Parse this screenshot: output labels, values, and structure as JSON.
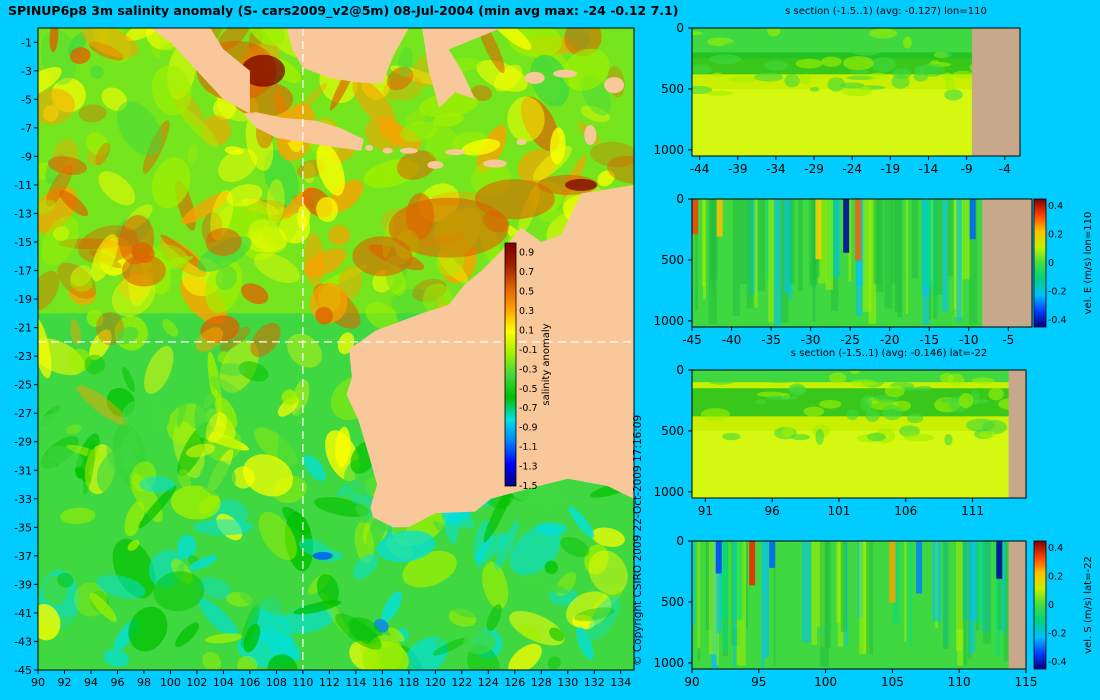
{
  "title": "SPINUP6p8 3m salinity anomaly (S- cars2009_v2@5m) 08-Jul-2004 (min avg max: -24 -0.12 7.1)",
  "copyright": "© Copyright CSIRO 2009   22-Oct-2009 17:16:09",
  "colors": {
    "background": "#00ccff",
    "land_map": "#f9c89a",
    "land_section": "#c8a88a",
    "colormap": [
      "#00007f",
      "#0000ff",
      "#0080ff",
      "#00e0e0",
      "#00c000",
      "#40d840",
      "#a0f000",
      "#ffff00",
      "#ffa000",
      "#e06000",
      "#a02000",
      "#7f0000"
    ]
  },
  "chart_data": [
    {
      "type": "heatmap",
      "name": "main-map",
      "x_ticks": [
        "90",
        "92",
        "94",
        "96",
        "98",
        "100",
        "102",
        "104",
        "106",
        "108",
        "110",
        "112",
        "114",
        "116",
        "118",
        "120",
        "122",
        "124",
        "126",
        "128",
        "130",
        "132",
        "134"
      ],
      "y_ticks": [
        "-1",
        "-3",
        "-5",
        "-7",
        "-9",
        "-11",
        "-13",
        "-15",
        "-17",
        "-19",
        "-21",
        "-23",
        "-25",
        "-27",
        "-29",
        "-31",
        "-33",
        "-35",
        "-37",
        "-39",
        "-41",
        "-43",
        "-45"
      ],
      "xlim": [
        90,
        135
      ],
      "ylim": [
        -45,
        0
      ],
      "lines": [
        "lon=110",
        "lat=-22"
      ],
      "colorbar": {
        "label": "salinity anomaly",
        "ticks": [
          "0.9",
          "0.7",
          "0.5",
          "0.3",
          "0.1",
          "-0.1",
          "-0.3",
          "-0.5",
          "-0.7",
          "-0.9",
          "-1.1",
          "-1.3",
          "-1.5"
        ],
        "range": [
          -1.5,
          1.0
        ]
      }
    },
    {
      "type": "heatmap",
      "name": "section-1",
      "title": "s section (-1.5..1) (avg: -0.127) lon=110",
      "x_ticks": [
        "-44",
        "-39",
        "-34",
        "-29",
        "-24",
        "-19",
        "-14",
        "-9",
        "-4"
      ],
      "y_ticks": [
        "0",
        "500",
        "1000"
      ],
      "xlim": [
        -45,
        -2
      ],
      "ylim": [
        1050,
        0
      ]
    },
    {
      "type": "heatmap",
      "name": "section-2",
      "x_ticks": [
        "-45",
        "-40",
        "-35",
        "-30",
        "-25",
        "-20",
        "-15",
        "-10",
        "-5"
      ],
      "y_ticks": [
        "0",
        "500",
        "1000"
      ],
      "xlim": [
        -45,
        -2
      ],
      "ylim": [
        1050,
        0
      ],
      "colorbar": {
        "label": "vel. E (m/s) lon=110",
        "ticks": [
          "0.4",
          "0.2",
          "0",
          "-0.2",
          "-0.4"
        ],
        "range": [
          -0.45,
          0.45
        ]
      }
    },
    {
      "type": "heatmap",
      "name": "section-3",
      "title": "s section (-1.5..1) (avg: -0.146) lat=-22",
      "x_ticks": [
        "91",
        "96",
        "101",
        "106",
        "111"
      ],
      "y_ticks": [
        "0",
        "500",
        "1000"
      ],
      "xlim": [
        90,
        115
      ],
      "ylim": [
        1050,
        0
      ]
    },
    {
      "type": "heatmap",
      "name": "section-4",
      "x_ticks": [
        "90",
        "95",
        "100",
        "105",
        "110",
        "115"
      ],
      "y_ticks": [
        "0",
        "500",
        "1000"
      ],
      "xlim": [
        90,
        115
      ],
      "ylim": [
        1050,
        0
      ],
      "colorbar": {
        "label": "vel. S (m/s) lat=-22",
        "ticks": [
          "0.4",
          "0.2",
          "0",
          "-0.2",
          "-0.4"
        ],
        "range": [
          -0.45,
          0.45
        ]
      }
    }
  ]
}
